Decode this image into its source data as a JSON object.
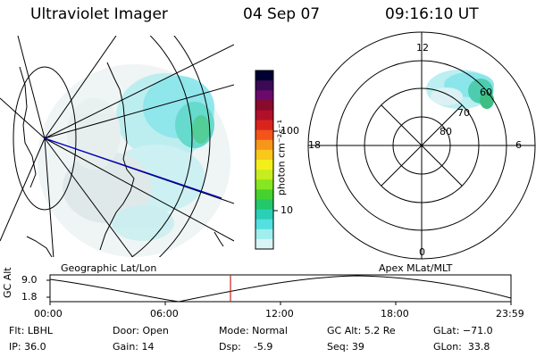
{
  "header": {
    "title": "Ultraviolet Imager",
    "date": "04 Sep 07",
    "time": "09:16:10 UT"
  },
  "colorbar": {
    "label": "photon cm⁻²s⁻¹",
    "ticks": [
      "100",
      "10"
    ],
    "colors": [
      "#000033",
      "#3a0a55",
      "#6a0a6a",
      "#8a0a2a",
      "#b0102a",
      "#d8241c",
      "#f2541a",
      "#f6961a",
      "#f8c81a",
      "#f4ef1a",
      "#c6ee1e",
      "#86e622",
      "#46d22e",
      "#22c86a",
      "#2ad0b6",
      "#54e0e0",
      "#a0eeee",
      "#d8f4f4"
    ]
  },
  "polar": {
    "labels": {
      "top": "12",
      "bottom": "0",
      "left": "18",
      "right": "6"
    },
    "lat_labels": [
      "60",
      "70",
      "80"
    ]
  },
  "panels": {
    "left_label": "Geographic Lat/Lon",
    "right_label": "Apex MLat/MLT"
  },
  "timeline": {
    "axis_label": "GC Alt",
    "y_ticks": [
      "9.0",
      "1.8"
    ],
    "x_ticks": [
      "00:00",
      "06:00",
      "12:00",
      "18:00",
      "23:59"
    ],
    "marker_color": "#cc2222"
  },
  "status": {
    "filter": "Flt: LBHL",
    "ip": "IP: 36.0",
    "door": "Door: Open",
    "gain": "Gain: 14",
    "mode": "Mode: Normal",
    "dsp": "Dsp:    -5.9",
    "gc_alt": "GC Alt: 5.2 Re",
    "seq": "Seq: 39",
    "glat": "GLat: −71.0",
    "glon": "GLon:  33.8"
  }
}
